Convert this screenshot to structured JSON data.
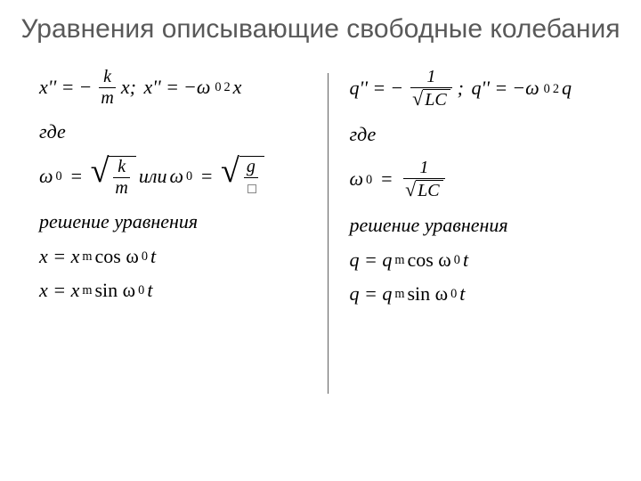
{
  "slide": {
    "title": "Уравнения описывающие свободные колебания",
    "background_color": "#ffffff",
    "title_color": "#595959",
    "title_fontsize": 30,
    "divider_color": "#606060",
    "font_family_body": "Times New Roman",
    "body_fontsize": 22
  },
  "left_column": {
    "eq1": {
      "var": "x",
      "eq_a_prefix": "x'' = −",
      "frac_num": "k",
      "frac_den": "m",
      "eq_a_suffix": "x;",
      "eq_b": "x'' = −ω",
      "eq_b_sub": "0",
      "eq_b_sup": "2",
      "eq_b_suffix": "x"
    },
    "where": "где",
    "eq2": {
      "omega": "ω",
      "sub0": "0",
      "equals": " = ",
      "frac_num": "k",
      "frac_den": "m",
      "or": " или ",
      "frac2_num": "g",
      "frac2_den_box": "⊡"
    },
    "solution_label": "решение уравнения",
    "sol1": "x = x",
    "sol1_sub": "m",
    "sol1_cos": " cos ω",
    "sol1_t": "t",
    "sol2": "x = x",
    "sol2_sub": "m",
    "sol2_sin": " sin ω",
    "sol2_t": "t"
  },
  "right_column": {
    "eq1": {
      "var": "q",
      "eq_a_prefix": "q'' = −",
      "frac_num": "1",
      "frac_den_inside": "LC",
      "eq_a_suffix": ";",
      "eq_b": "q'' = −ω",
      "eq_b_sub": "0",
      "eq_b_sup": "2",
      "eq_b_suffix": "q"
    },
    "where": "где",
    "eq2": {
      "omega": "ω",
      "sub0": "0",
      "equals": " = ",
      "frac_num": "1",
      "frac_den_inside": "LC"
    },
    "solution_label": "решение уравнения",
    "sol1": "q = q",
    "sol1_sub": "m",
    "sol1_cos": " cos ω",
    "sol1_t": "t",
    "sol2": "q = q",
    "sol2_sub": "m",
    "sol2_sin": "sin ω",
    "sol2_t": "t"
  }
}
